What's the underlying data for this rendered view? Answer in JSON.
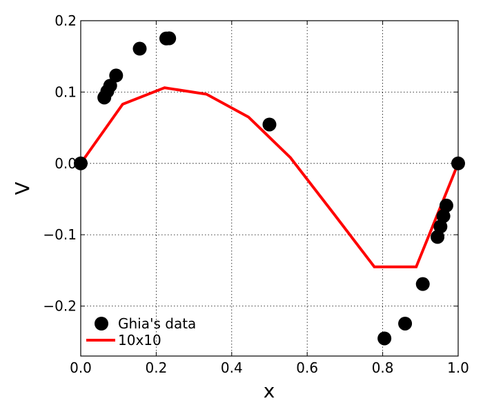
{
  "chart_data": {
    "type": "scatter",
    "xlabel": "x",
    "ylabel": "V",
    "xlim": [
      0,
      1
    ],
    "ylim": [
      -0.27,
      0.2
    ],
    "grid": true,
    "legend_position": "bottom-left",
    "x_ticks": [
      0.0,
      0.2,
      0.4,
      0.6,
      0.8,
      1.0
    ],
    "x_tick_labels": [
      "0.0",
      "0.2",
      "0.4",
      "0.6",
      "0.8",
      "1.0"
    ],
    "y_ticks": [
      0.2,
      0.1,
      0.0,
      -0.1,
      -0.2
    ],
    "y_tick_labels": [
      "0.2",
      "0.1",
      "0.0",
      "−0.1",
      "−0.2"
    ],
    "series": [
      {
        "name": "Ghia's data",
        "type": "scatter",
        "color": "#000000",
        "x": [
          0.0,
          0.0625,
          0.0703,
          0.0781,
          0.0938,
          0.1563,
          0.2266,
          0.2344,
          0.5,
          0.8047,
          0.8594,
          0.9063,
          0.9453,
          0.9531,
          0.9609,
          0.9688,
          1.0
        ],
        "y": [
          0.0,
          0.0923,
          0.1009,
          0.1089,
          0.1232,
          0.1608,
          0.1751,
          0.1753,
          0.0545,
          -0.2453,
          -0.2245,
          -0.1691,
          -0.1031,
          -0.0886,
          -0.0739,
          -0.0591,
          0.0
        ]
      },
      {
        "name": "10x10",
        "type": "line",
        "color": "#ff0000",
        "x": [
          0.0,
          0.1111,
          0.2222,
          0.3333,
          0.4444,
          0.5556,
          0.6667,
          0.7778,
          0.8889,
          1.0
        ],
        "y": [
          0.0,
          0.083,
          0.106,
          0.097,
          0.065,
          0.008,
          -0.068,
          -0.145,
          -0.145,
          0.0
        ]
      }
    ]
  }
}
